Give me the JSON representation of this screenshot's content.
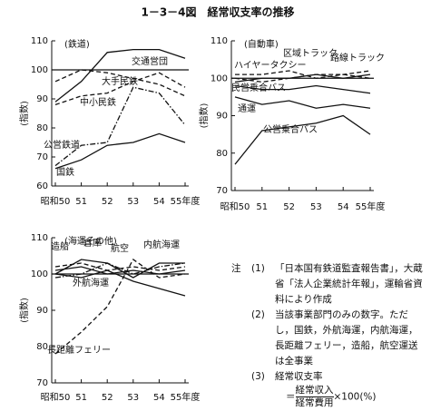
{
  "figure_title": "1－3－4図　経常収支率の推移",
  "chart_data": [
    {
      "type": "line",
      "title": "(鉄道)",
      "y_label": "(指数)",
      "categories": [
        "昭和50",
        "51",
        "52",
        "53",
        "54",
        "55年度"
      ],
      "ylim": [
        60,
        110
      ],
      "yticks": [
        60,
        70,
        80,
        90,
        100,
        110
      ],
      "reference_line": 100,
      "series": [
        {
          "name": "交通営団",
          "color": "#111",
          "dash": "solid",
          "values": [
            89,
            96,
            106,
            107,
            107,
            104
          ]
        },
        {
          "name": "大手民鉄",
          "color": "#111",
          "dash": "dashed",
          "values": [
            96,
            100,
            99,
            97,
            95,
            91
          ]
        },
        {
          "name": "中小民鉄",
          "color": "#111",
          "dash": "dashed",
          "values": [
            88,
            91,
            92,
            96,
            99,
            94
          ]
        },
        {
          "name": "公営鉄道",
          "color": "#111",
          "dash": "dashdot",
          "values": [
            67,
            74,
            75,
            94,
            92,
            81
          ]
        },
        {
          "name": "国鉄",
          "color": "#111",
          "dash": "solid",
          "values": [
            66,
            69,
            74,
            75,
            78,
            75
          ]
        }
      ]
    },
    {
      "type": "line",
      "title": "(自動車)",
      "y_label": "(指数)",
      "categories": [
        "昭和50",
        "51",
        "52",
        "53",
        "54",
        "55年度"
      ],
      "ylim": [
        70,
        110
      ],
      "yticks": [
        70,
        80,
        90,
        100,
        110
      ],
      "reference_line": 100,
      "series": [
        {
          "name": "ハイヤータクシー",
          "color": "#111",
          "dash": "dashed",
          "values": [
            100,
            99,
            100,
            101,
            101,
            100
          ]
        },
        {
          "name": "区域トラック",
          "color": "#111",
          "dash": "dashed",
          "values": [
            101,
            101,
            102,
            100,
            101,
            102
          ]
        },
        {
          "name": "路線トラック",
          "color": "#111",
          "dash": "solid",
          "values": [
            99,
            100,
            100,
            101,
            100,
            101
          ]
        },
        {
          "name": "民営乗合バス",
          "color": "#111",
          "dash": "solid",
          "values": [
            98,
            97,
            97,
            98,
            97,
            96
          ]
        },
        {
          "name": "通運",
          "color": "#111",
          "dash": "solid",
          "values": [
            95,
            93,
            94,
            92,
            93,
            92
          ]
        },
        {
          "name": "公営乗合バス",
          "color": "#111",
          "dash": "solid",
          "values": [
            77,
            86,
            87,
            88,
            90,
            85
          ]
        }
      ]
    },
    {
      "type": "line",
      "title": "(海運その他)",
      "y_label": "(指数)",
      "categories": [
        "昭和50",
        "51",
        "52",
        "53",
        "54",
        "55年度"
      ],
      "ylim": [
        70,
        110
      ],
      "yticks": [
        70,
        80,
        90,
        100,
        110
      ],
      "reference_line": 100,
      "series": [
        {
          "name": "造船",
          "color": "#111",
          "dash": "dashed",
          "values": [
            102,
            103,
            101,
            102,
            101,
            102
          ]
        },
        {
          "name": "倉庫",
          "color": "#111",
          "dash": "solid",
          "values": [
            101,
            102,
            100,
            101,
            100,
            101
          ]
        },
        {
          "name": "航空",
          "color": "#111",
          "dash": "solid",
          "values": [
            100,
            104,
            103,
            99,
            103,
            103
          ]
        },
        {
          "name": "内航海運",
          "color": "#111",
          "dash": "dashdot",
          "values": [
            99,
            100,
            103,
            100,
            102,
            103
          ]
        },
        {
          "name": "外航海運",
          "color": "#111",
          "dash": "solid",
          "values": [
            100,
            99,
            101,
            98,
            96,
            94
          ]
        },
        {
          "name": "長距離フェリー",
          "color": "#111",
          "dash": "dashed",
          "values": [
            78,
            84,
            91,
            104,
            99,
            100
          ]
        }
      ]
    }
  ],
  "notes": {
    "label": "注",
    "items": [
      {
        "num": "(1)",
        "text": "「日本国有鉄道監査報告書」，大蔵省「法人企業統計年報」，運輸省資料により作成"
      },
      {
        "num": "(2)",
        "text": "当該事業部門のみの数字。ただし，国鉄，外航海運，内航海運，長距離フェリー，造船，航空運送は全事業"
      },
      {
        "num": "(3)",
        "text": "経常収支率"
      }
    ],
    "formula": {
      "lhs": "＝",
      "numerator": "経常収入",
      "denominator": "経常費用",
      "suffix": "×100(%)"
    }
  }
}
